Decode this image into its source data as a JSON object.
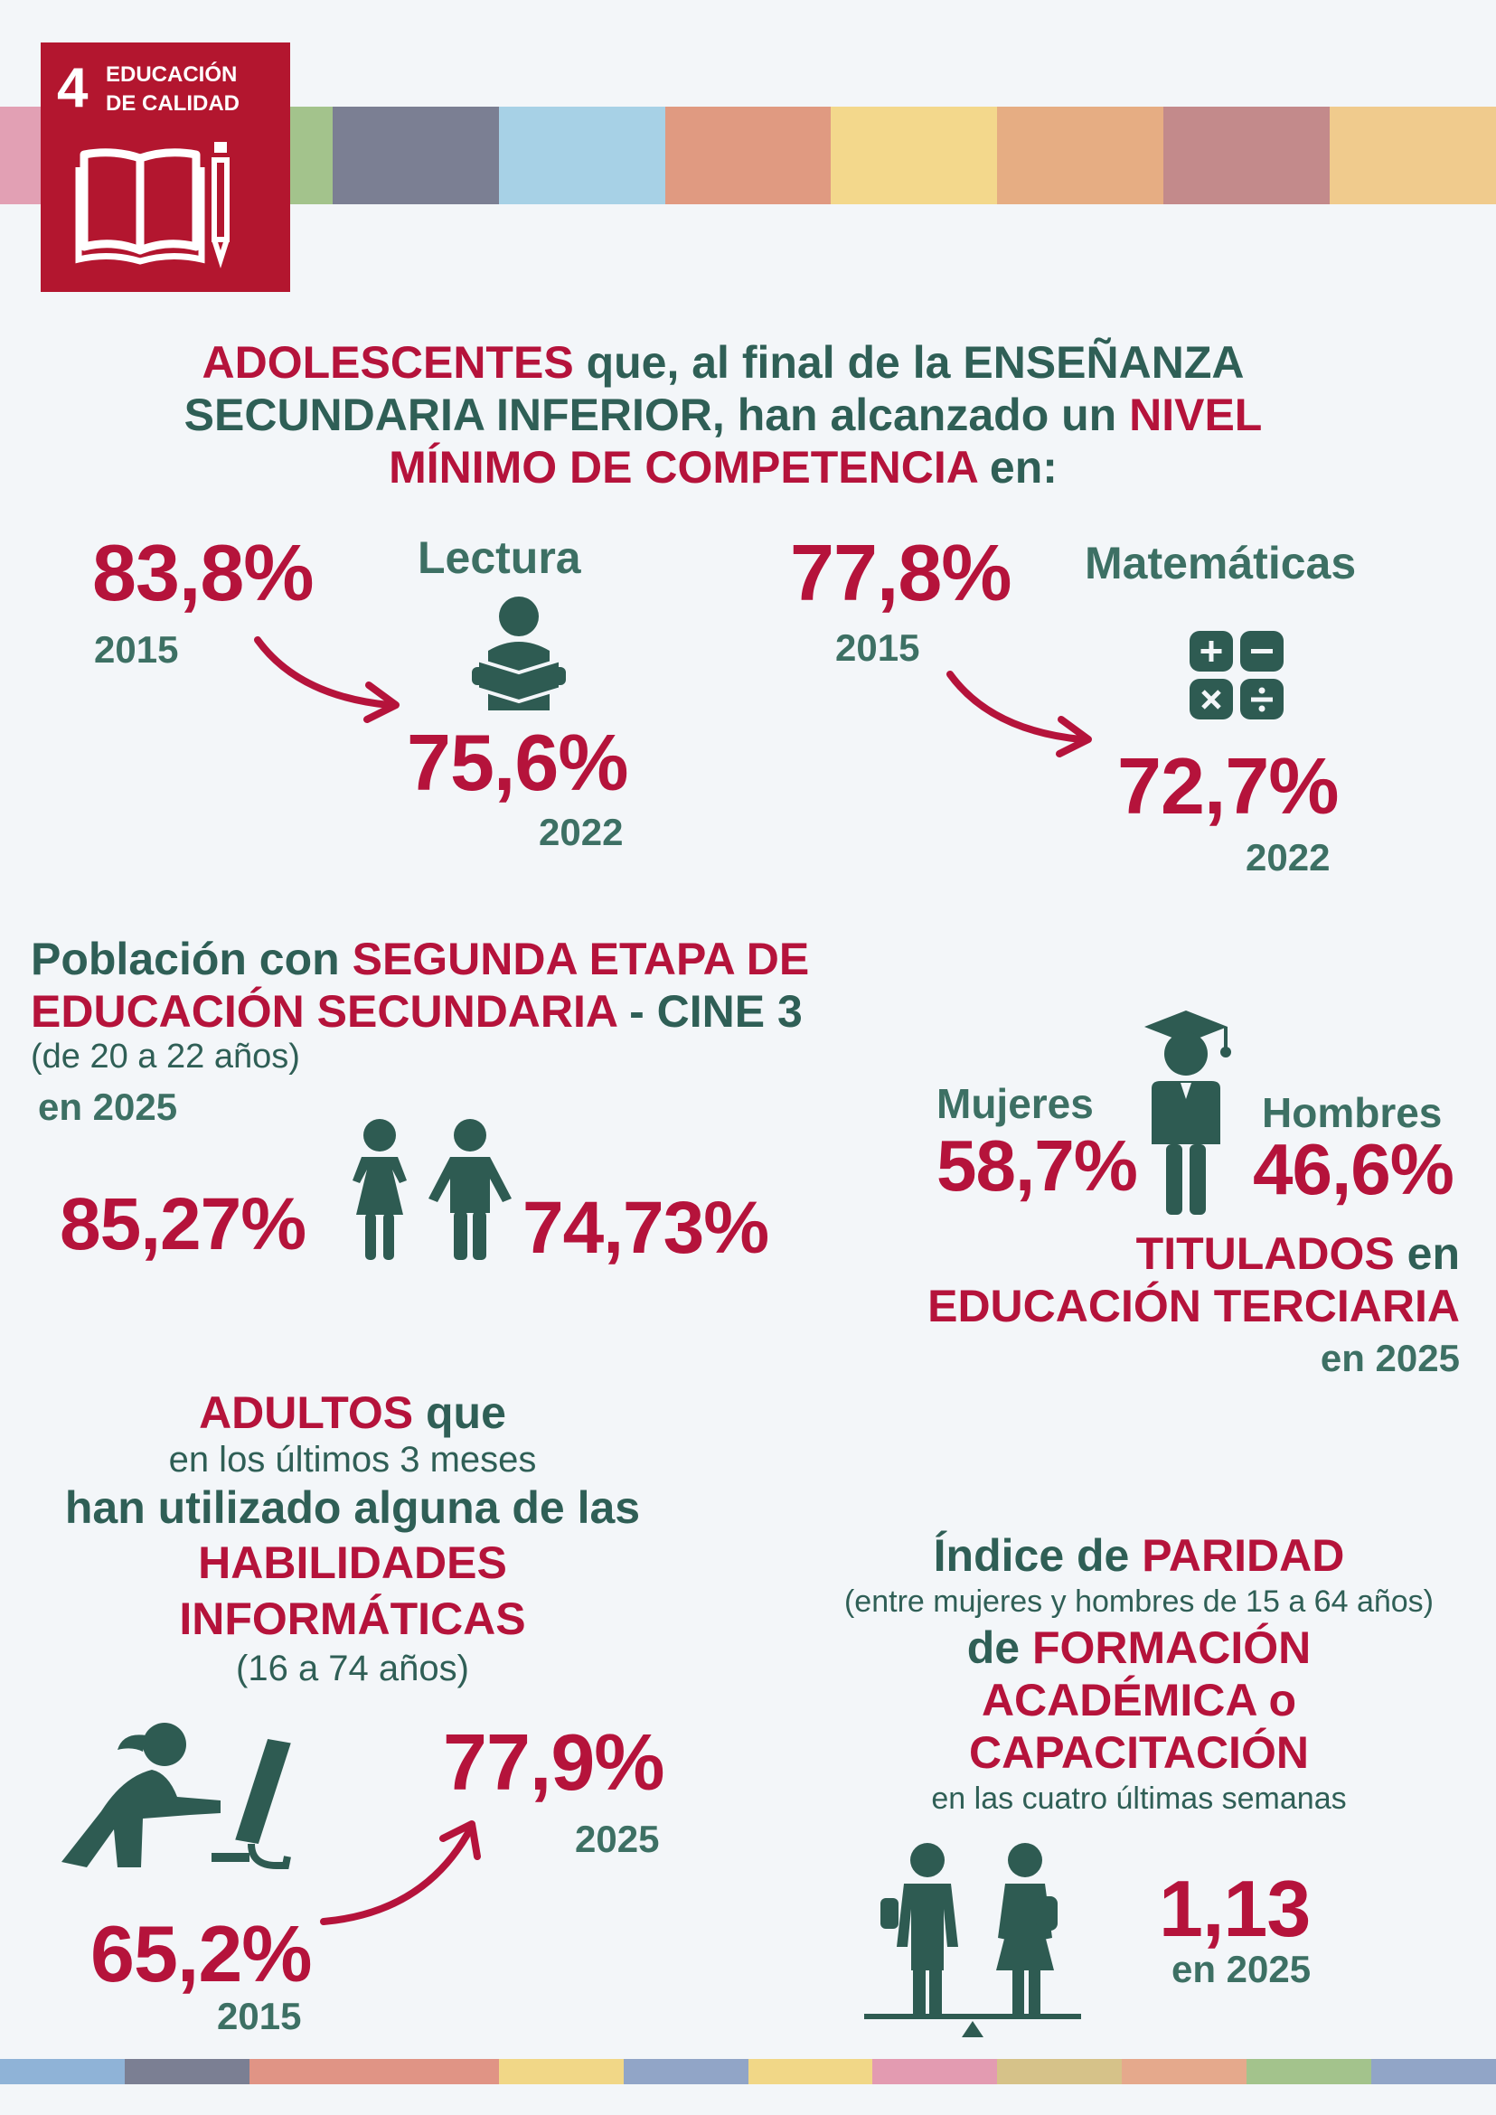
{
  "sdg": {
    "number": "4",
    "line1": "EDUCACIÓN",
    "line2": "DE CALIDAD",
    "color": "#b3162f"
  },
  "stripe_colors": [
    "#e2a0b4",
    "#a3c38c",
    "#7b7f93",
    "#a7d1e6",
    "#e09a81",
    "#f3d88c",
    "#e6ad83",
    "#c38a8b",
    "#f0cb8d"
  ],
  "bottom_stripe_colors": [
    "#8fb3d7",
    "#7b7f93",
    "#e09485",
    "#e09485",
    "#f1d787",
    "#91a5c7",
    "#f1d787",
    "#e39bb1",
    "#d6c289",
    "#e5a98c",
    "#a3c38c",
    "#91a5c7"
  ],
  "s1": {
    "t1": "ADOLESCENTES",
    "t2": " que, al final de la ENSEÑANZA",
    "t3": "SECUNDARIA INFERIOR, han alcanzado un ",
    "t4": "NIVEL",
    "t5": "MÍNIMO DE COMPETENCIA",
    "t6": " en:",
    "reading": {
      "label": "Lectura",
      "v2015": "83,8%",
      "y2015": "2015",
      "v2022": "75,6%",
      "y2022": "2022",
      "icon": "reading-person-icon"
    },
    "math": {
      "label": "Matemáticas",
      "v2015": "77,8%",
      "y2015": "2015",
      "v2022": "72,7%",
      "y2022": "2022",
      "icon": "calculator-icon"
    }
  },
  "s2": {
    "t1": "Población con ",
    "t2": "SEGUNDA ETAPA DE",
    "t3": "EDUCACIÓN SECUNDARIA",
    "t4": " - CINE 3",
    "sub": "(de 20 a 22 años)",
    "year": "en 2025",
    "women": "85,27%",
    "men": "74,73%",
    "icon": "girl-boy-icon"
  },
  "s3": {
    "women_label": "Mujeres",
    "men_label": "Hombres",
    "women": "58,7%",
    "men": "46,6%",
    "t1": "TITULADOS",
    "t2": " en",
    "t3": "EDUCACIÓN TERCIARIA",
    "year": "en 2025",
    "icon": "graduate-icon"
  },
  "s4": {
    "t1": "ADULTOS",
    "t2": " que",
    "t3": "en los últimos 3 meses",
    "t4": "han utilizado alguna de las",
    "t5": "HABILIDADES",
    "t6": "INFORMÁTICAS",
    "t7": "(16 a 74 años)",
    "v2015": "65,2%",
    "y2015": "2015",
    "v2025": "77,9%",
    "y2025": "2025",
    "icon": "computer-user-icon"
  },
  "s5": {
    "t1": "Índice de ",
    "t2": "PARIDAD",
    "t3": "(entre mujeres y hombres de 15 a 64 años)",
    "t4": "de ",
    "t5": "FORMACIÓN",
    "t6": "ACADÉMICA o",
    "t7": "CAPACITACIÓN",
    "t8": "en las cuatro últimas semanas",
    "value": "1,13",
    "year": "en 2025",
    "icon": "balance-people-icon"
  },
  "colors": {
    "accent_red": "#b5133b",
    "teal": "#2f5f56",
    "icon_dark": "#2e5b52",
    "background": "#f3f6f9"
  }
}
